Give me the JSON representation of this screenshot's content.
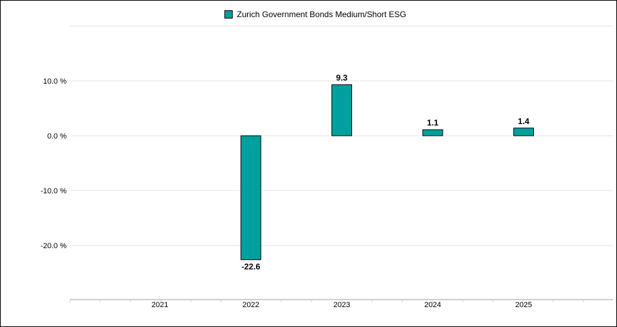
{
  "chart_data": {
    "type": "bar",
    "categories": [
      "2021",
      "2022",
      "2023",
      "2024",
      "2025"
    ],
    "series": [
      {
        "name": "Zurich Government Bonds Medium/Short ESG",
        "values": [
          null,
          -22.6,
          9.3,
          1.1,
          1.4
        ],
        "labels": [
          "",
          "-22.6",
          "9.3",
          "1.1",
          "1.4"
        ]
      }
    ],
    "y_ticks": [
      {
        "value": 10,
        "label": "10.0 %"
      },
      {
        "value": 0,
        "label": "0.0 %"
      },
      {
        "value": -10,
        "label": "-10.0 %"
      },
      {
        "value": -20,
        "label": "-20.0 %"
      }
    ],
    "ylim": [
      -30,
      20
    ],
    "grid": true,
    "legend": "top-center",
    "colors": {
      "bar": "#00a09e",
      "bar_stroke": "#000000",
      "grid": "#e6e6e6"
    }
  }
}
